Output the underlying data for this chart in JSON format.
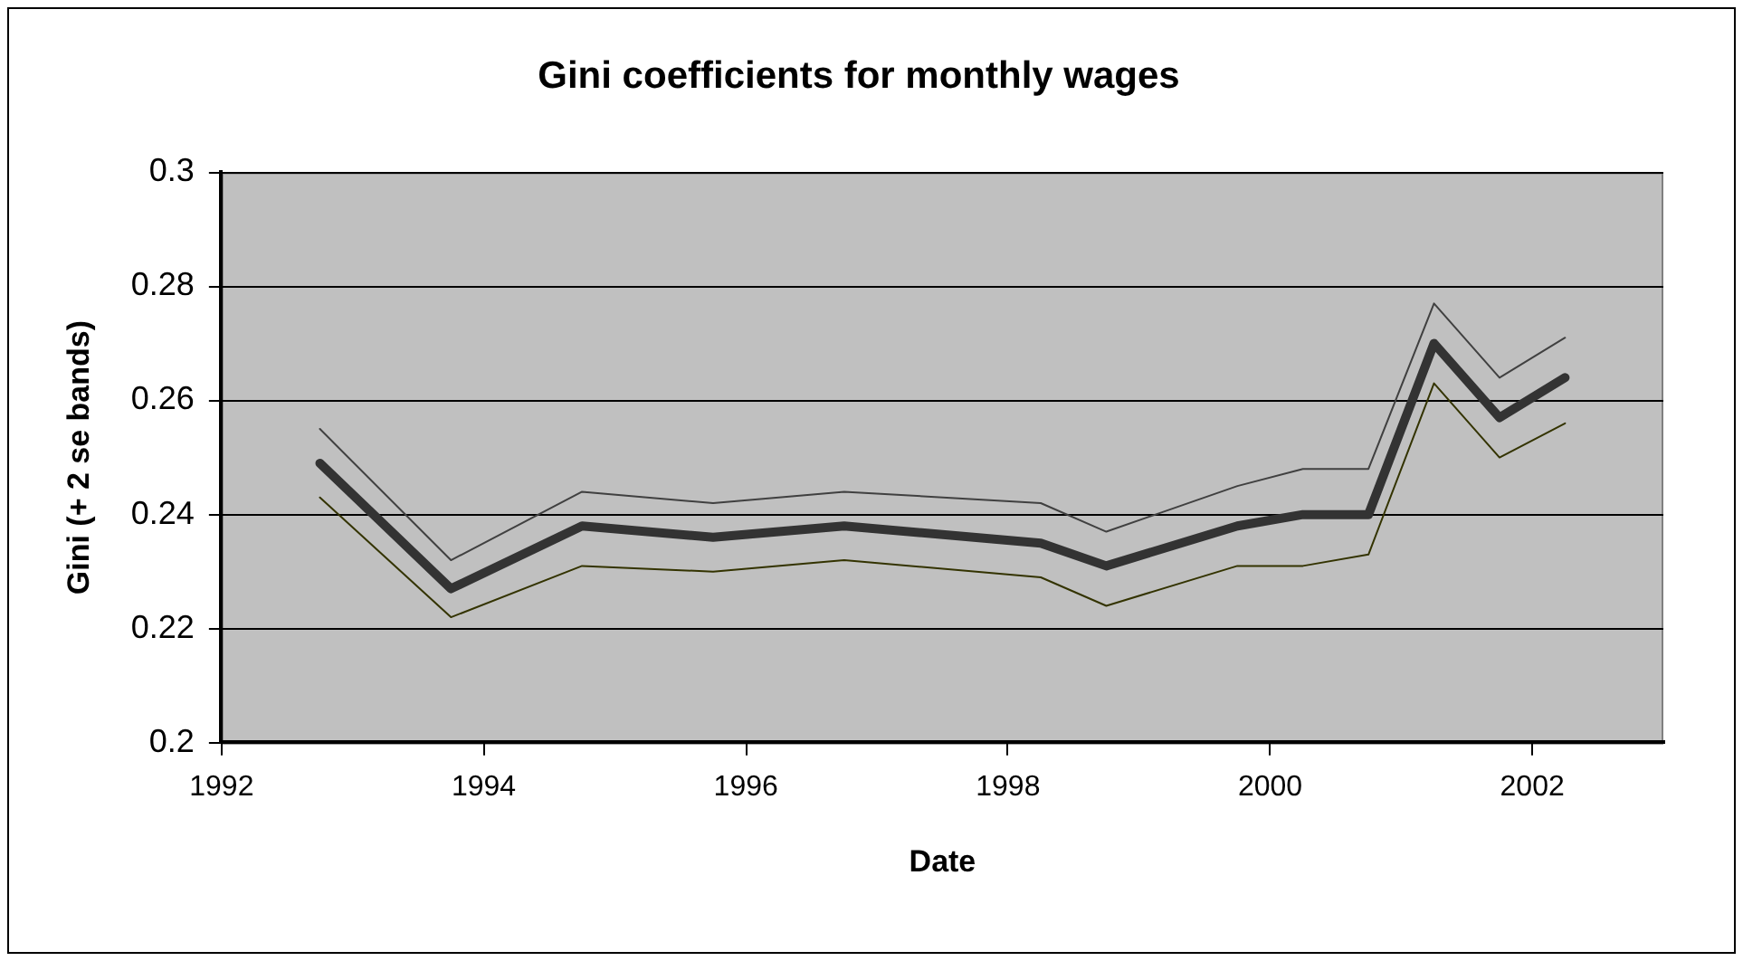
{
  "chart_data": {
    "type": "line",
    "title": "Gini coefficients for monthly wages",
    "xlabel": "Date",
    "ylabel": "Gini (+ 2 se bands)",
    "x": [
      1992.75,
      1993.75,
      1994.75,
      1995.75,
      1996.75,
      1998.25,
      1998.75,
      1999.75,
      2000.25,
      2000.75,
      2001.25,
      2001.75,
      2002.25
    ],
    "series": [
      {
        "color": "#333333",
        "values": [
          0.249,
          0.227,
          0.238,
          0.236,
          0.238,
          0.235,
          0.231,
          0.238,
          0.24,
          0.24,
          0.27,
          0.257,
          0.264
        ]
      },
      {
        "color": "#404040",
        "values": [
          0.255,
          0.232,
          0.244,
          0.242,
          0.244,
          0.242,
          0.237,
          0.245,
          0.248,
          0.248,
          0.277,
          0.264,
          0.271
        ]
      },
      {
        "color": "#333300",
        "values": [
          0.243,
          0.222,
          0.231,
          0.23,
          0.232,
          0.229,
          0.224,
          0.231,
          0.231,
          0.233,
          0.263,
          0.25,
          0.256
        ]
      }
    ],
    "xlim": [
      1992,
      2003
    ],
    "xticks": [
      1992,
      1994,
      1996,
      1998,
      2000,
      2002
    ],
    "ylim": [
      0.2,
      0.3
    ],
    "yticks": [
      0.2,
      0.22,
      0.24,
      0.26,
      0.28,
      0.3
    ],
    "grid": "y",
    "legend": false,
    "marker": "none",
    "line_style": "solid"
  }
}
